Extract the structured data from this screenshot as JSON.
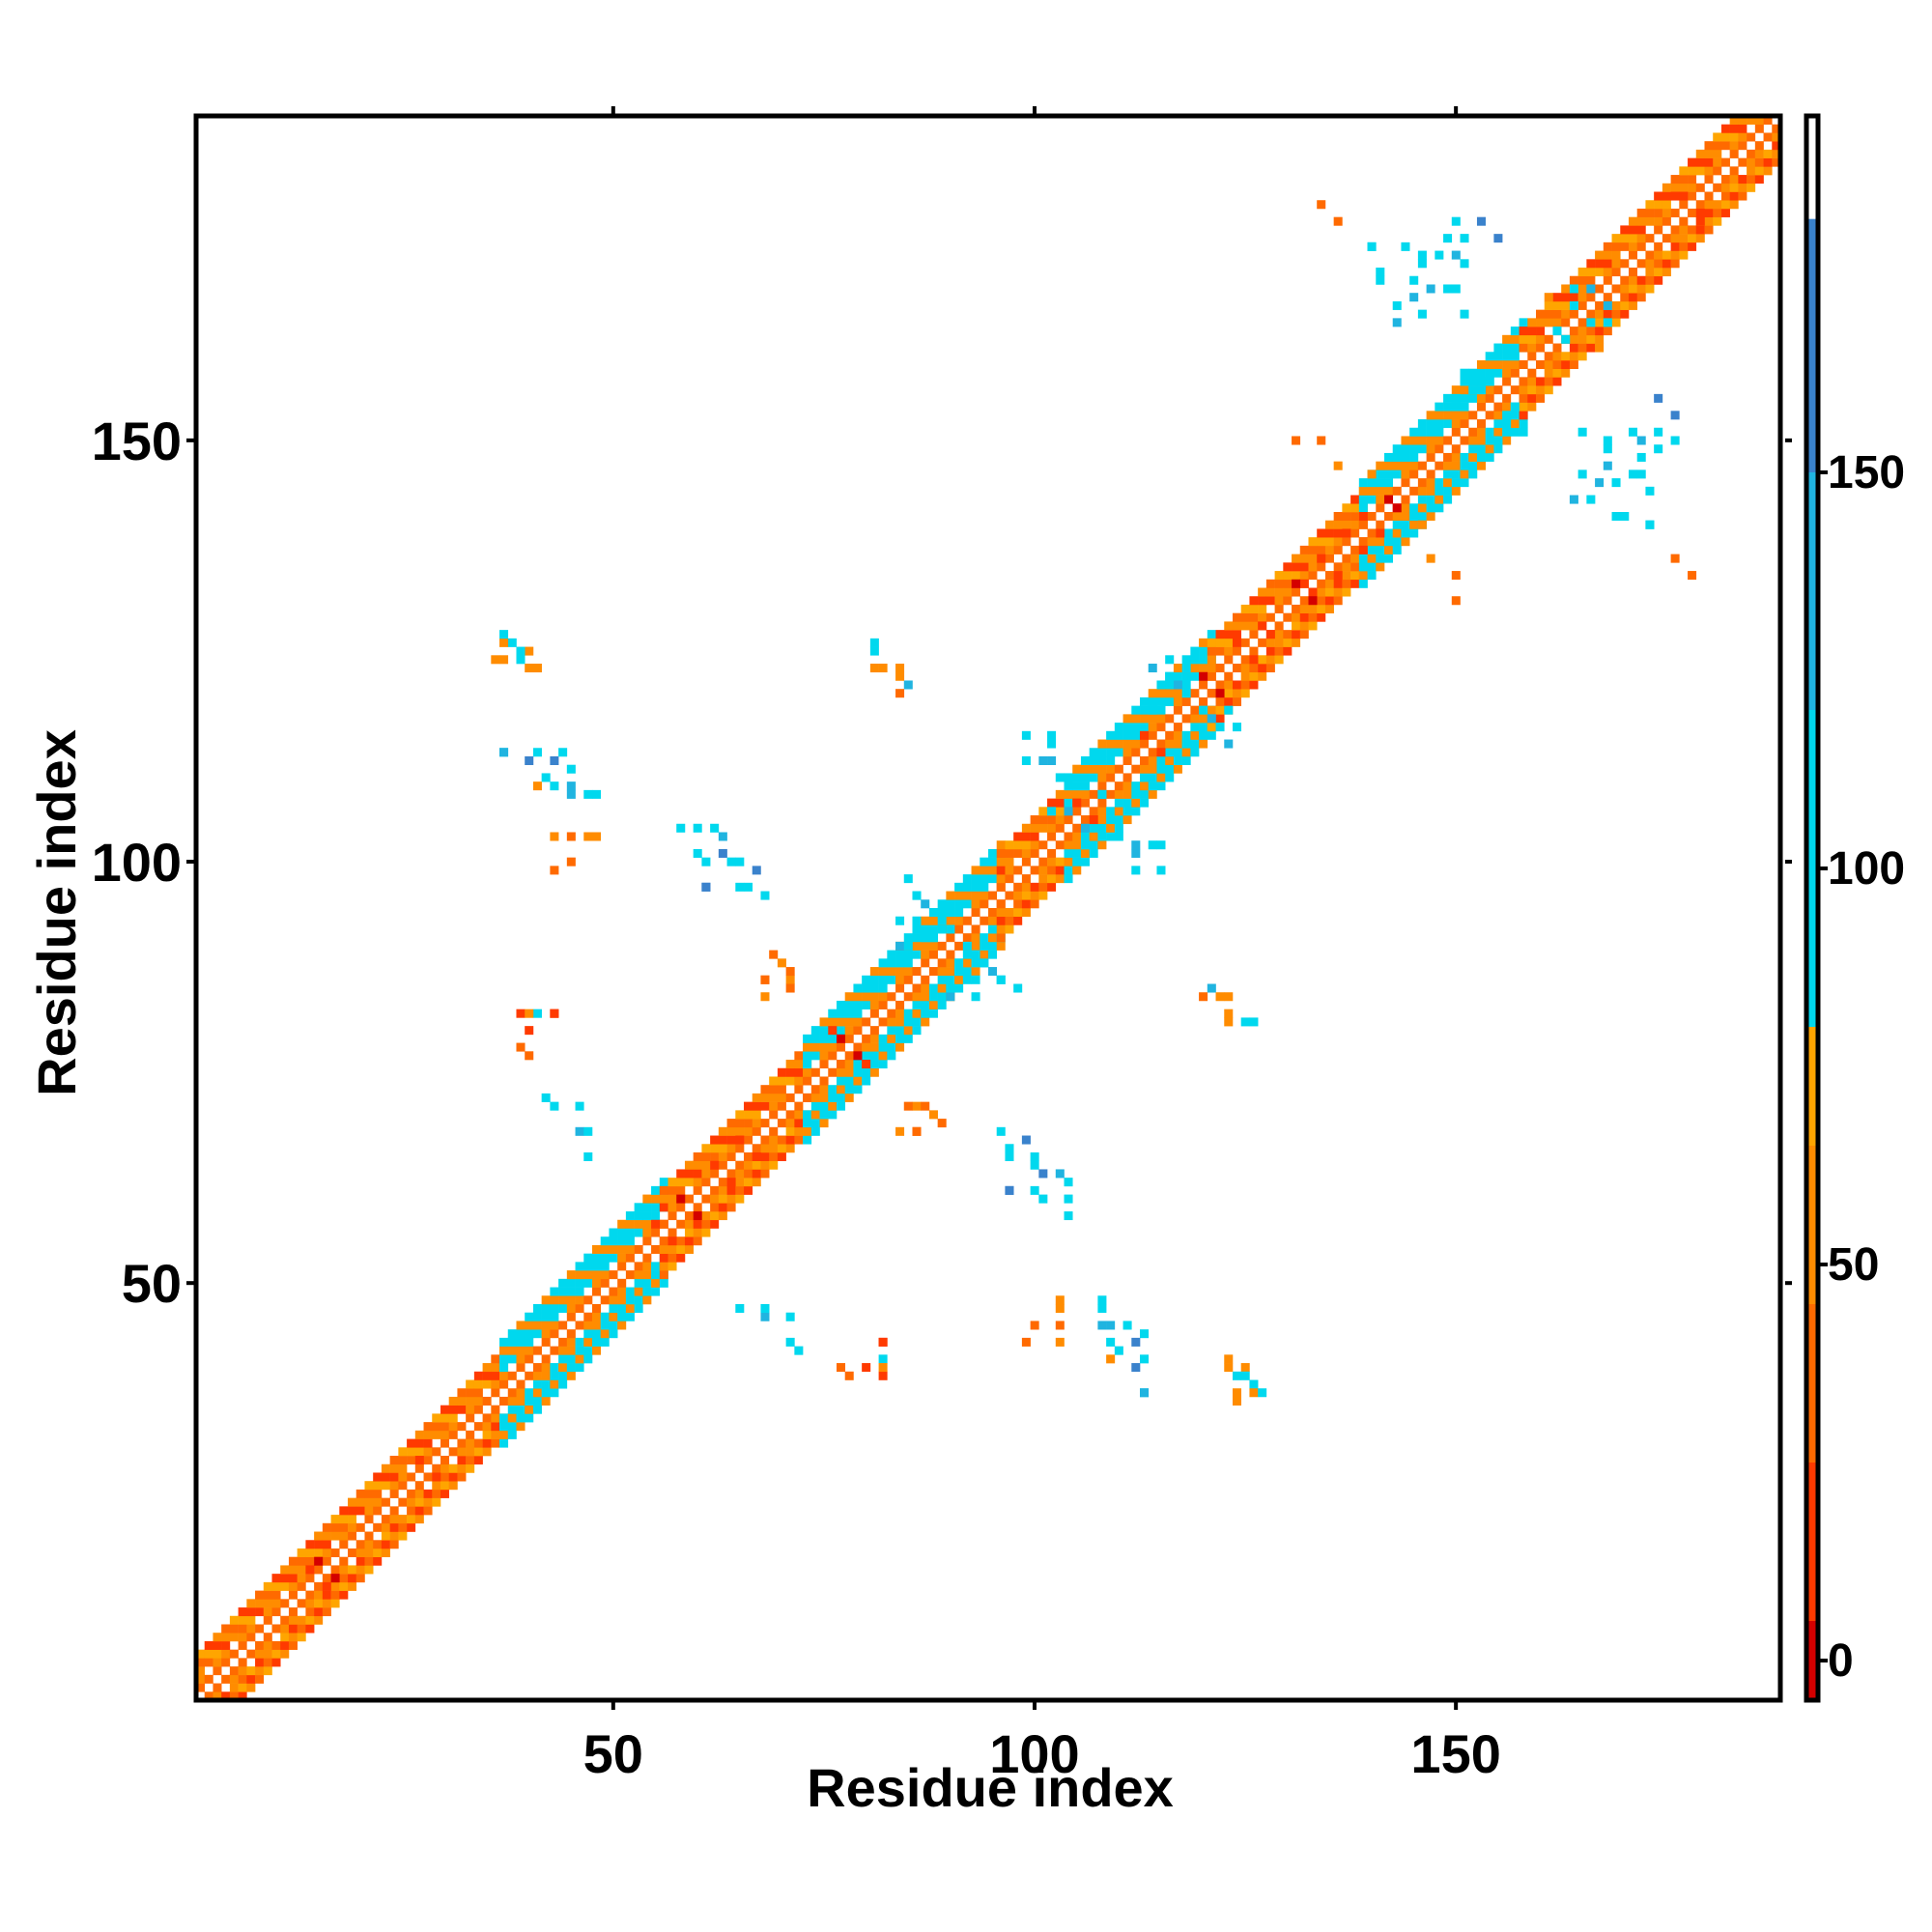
{
  "chart_data": {
    "type": "heatmap",
    "title": "",
    "xlabel": "Residue index",
    "ylabel": "Residue index",
    "xlim": [
      1,
      188
    ],
    "ylim": [
      1,
      188
    ],
    "x_ticks": [
      50,
      100,
      150
    ],
    "y_ticks": [
      50,
      100,
      150
    ],
    "grid": false,
    "colorbar": {
      "placement": "right",
      "range": [
        -5,
        195
      ],
      "ticks": [
        0,
        50,
        100,
        150
      ],
      "bands": [
        {
          "from": -5,
          "to": 5,
          "color": "#d40000"
        },
        {
          "from": 5,
          "to": 25,
          "color": "#ff3a00"
        },
        {
          "from": 25,
          "to": 45,
          "color": "#ff6a00"
        },
        {
          "from": 45,
          "to": 65,
          "color": "#ff8c00"
        },
        {
          "from": 65,
          "to": 80,
          "color": "#ffa500"
        },
        {
          "from": 80,
          "to": 120,
          "color": "#00d8ee"
        },
        {
          "from": 120,
          "to": 150,
          "color": "#20b4e0"
        },
        {
          "from": 150,
          "to": 182,
          "color": "#3a82cc"
        },
        {
          "from": 182,
          "to": 195,
          "color": "#ffffff"
        }
      ]
    },
    "diagonal_segments": [
      {
        "from": 1,
        "to": 37,
        "half_width": 5,
        "color": "#ff8c00"
      },
      {
        "from": 37,
        "to": 56,
        "half_width": 6,
        "color": "#00d8ee"
      },
      {
        "from": 56,
        "to": 73,
        "half_width": 5,
        "color": "#ff8c00"
      },
      {
        "from": 73,
        "to": 96,
        "half_width": 6,
        "color": "#00d8ee"
      },
      {
        "from": 96,
        "to": 104,
        "half_width": 5,
        "color": "#ff8c00"
      },
      {
        "from": 104,
        "to": 121,
        "half_width": 6,
        "color": "#00d8ee"
      },
      {
        "from": 121,
        "to": 139,
        "half_width": 5,
        "color": "#ff8c00"
      },
      {
        "from": 139,
        "to": 158,
        "half_width": 6,
        "color": "#00d8ee"
      },
      {
        "from": 158,
        "to": 188,
        "half_width": 5,
        "color": "#ff8c00"
      }
    ],
    "contact_clusters": [
      {
        "x": 37,
        "y": 124,
        "color": "#ff8c00"
      },
      {
        "x": 38,
        "y": 126,
        "color": "#00d8ee"
      },
      {
        "x": 39,
        "y": 124,
        "color": "#00d8ee"
      },
      {
        "x": 40,
        "y": 125,
        "color": "#ff8c00"
      },
      {
        "x": 41,
        "y": 123,
        "color": "#ff8c00"
      },
      {
        "x": 37,
        "y": 113,
        "color": "#00d8ee"
      },
      {
        "x": 40,
        "y": 112,
        "color": "#3a82cc"
      },
      {
        "x": 43,
        "y": 112,
        "color": "#3a82cc"
      },
      {
        "x": 41,
        "y": 109,
        "color": "#ff8c00"
      },
      {
        "x": 43,
        "y": 109,
        "color": "#00d8ee"
      },
      {
        "x": 45,
        "y": 108,
        "color": "#20b4e0"
      },
      {
        "x": 47,
        "y": 108,
        "color": "#00d8ee"
      },
      {
        "x": 43,
        "y": 103,
        "color": "#ff8c00"
      },
      {
        "x": 47,
        "y": 103,
        "color": "#ff8c00"
      },
      {
        "x": 43,
        "y": 99,
        "color": "#ff6a00"
      },
      {
        "x": 39,
        "y": 82,
        "color": "#ff3a00"
      },
      {
        "x": 41,
        "y": 82,
        "color": "#00d8ee"
      },
      {
        "x": 43,
        "y": 82,
        "color": "#ff3a00"
      },
      {
        "x": 39,
        "y": 78,
        "color": "#ff6a00"
      },
      {
        "x": 42,
        "y": 72,
        "color": "#00d8ee"
      },
      {
        "x": 46,
        "y": 71,
        "color": "#00d8ee"
      },
      {
        "x": 46,
        "y": 68,
        "color": "#20b4e0"
      },
      {
        "x": 58,
        "y": 104,
        "color": "#00d8ee"
      },
      {
        "x": 62,
        "y": 104,
        "color": "#00d8ee"
      },
      {
        "x": 60,
        "y": 101,
        "color": "#00d8ee"
      },
      {
        "x": 63,
        "y": 101,
        "color": "#3a82cc"
      },
      {
        "x": 65,
        "y": 100,
        "color": "#00d8ee"
      },
      {
        "x": 61,
        "y": 97,
        "color": "#3a82cc"
      },
      {
        "x": 66,
        "y": 97,
        "color": "#00d8ee"
      },
      {
        "x": 69,
        "y": 89,
        "color": "#ff6a00"
      },
      {
        "x": 70,
        "y": 88,
        "color": "#ff8c00"
      },
      {
        "x": 68,
        "y": 86,
        "color": "#ff6a00"
      },
      {
        "x": 71,
        "y": 86,
        "color": "#ff8c00"
      },
      {
        "x": 65,
        "y": 47,
        "color": "#00d8ee"
      },
      {
        "x": 68,
        "y": 47,
        "color": "#00d8ee"
      },
      {
        "x": 71,
        "y": 43,
        "color": "#00d8ee"
      },
      {
        "x": 77,
        "y": 40,
        "color": "#ff6a00"
      },
      {
        "x": 80,
        "y": 40,
        "color": "#ff3a00"
      },
      {
        "x": 82,
        "y": 43,
        "color": "#ff3a00"
      },
      {
        "x": 82,
        "y": 40,
        "color": "#ff8c00"
      },
      {
        "x": 81,
        "y": 126,
        "color": "#00d8ee"
      },
      {
        "x": 82,
        "y": 123,
        "color": "#ff8c00"
      },
      {
        "x": 84,
        "y": 123,
        "color": "#ff8c00"
      },
      {
        "x": 85,
        "y": 121,
        "color": "#20b4e0"
      },
      {
        "x": 85,
        "y": 71,
        "color": "#ff6a00"
      },
      {
        "x": 87,
        "y": 71,
        "color": "#ff6a00"
      },
      {
        "x": 84,
        "y": 68,
        "color": "#ff8c00"
      },
      {
        "x": 86,
        "y": 68,
        "color": "#ff6a00"
      },
      {
        "x": 96,
        "y": 68,
        "color": "#00d8ee"
      },
      {
        "x": 99,
        "y": 67,
        "color": "#3a82cc"
      },
      {
        "x": 97,
        "y": 65,
        "color": "#00d8ee"
      },
      {
        "x": 100,
        "y": 64,
        "color": "#00d8ee"
      },
      {
        "x": 103,
        "y": 63,
        "color": "#20b4e0"
      },
      {
        "x": 97,
        "y": 61,
        "color": "#3a82cc"
      },
      {
        "x": 100,
        "y": 61,
        "color": "#00d8ee"
      },
      {
        "x": 104,
        "y": 60,
        "color": "#00d8ee"
      },
      {
        "x": 99,
        "y": 115,
        "color": "#00d8ee"
      },
      {
        "x": 101,
        "y": 112,
        "color": "#20b4e0"
      },
      {
        "x": 102,
        "y": 115,
        "color": "#00d8ee"
      },
      {
        "x": 110,
        "y": 103,
        "color": "#00d8ee"
      },
      {
        "x": 112,
        "y": 102,
        "color": "#20b4e0"
      },
      {
        "x": 114,
        "y": 102,
        "color": "#00d8ee"
      },
      {
        "x": 112,
        "y": 99,
        "color": "#00d8ee"
      },
      {
        "x": 100,
        "y": 45,
        "color": "#ff6a00"
      },
      {
        "x": 103,
        "y": 48,
        "color": "#ff8c00"
      },
      {
        "x": 103,
        "y": 45,
        "color": "#ff6a00"
      },
      {
        "x": 108,
        "y": 48,
        "color": "#00d8ee"
      },
      {
        "x": 109,
        "y": 45,
        "color": "#20b4e0"
      },
      {
        "x": 111,
        "y": 45,
        "color": "#00d8ee"
      },
      {
        "x": 113,
        "y": 44,
        "color": "#00d8ee"
      },
      {
        "x": 110,
        "y": 42,
        "color": "#00d8ee"
      },
      {
        "x": 113,
        "y": 41,
        "color": "#00d8ee"
      },
      {
        "x": 113,
        "y": 37,
        "color": "#20b4e0"
      },
      {
        "x": 123,
        "y": 40,
        "color": "#ff8c00"
      },
      {
        "x": 125,
        "y": 39,
        "color": "#00d8ee"
      },
      {
        "x": 126,
        "y": 37,
        "color": "#ff8c00"
      },
      {
        "x": 124,
        "y": 36,
        "color": "#ff8c00"
      },
      {
        "x": 127,
        "y": 37,
        "color": "#00d8ee"
      },
      {
        "x": 120,
        "y": 84,
        "color": "#ff6a00"
      },
      {
        "x": 122,
        "y": 84,
        "color": "#ff8c00"
      },
      {
        "x": 123,
        "y": 81,
        "color": "#ff8c00"
      },
      {
        "x": 125,
        "y": 81,
        "color": "#00d8ee"
      },
      {
        "x": 134,
        "y": 178,
        "color": "#ff6a00"
      },
      {
        "x": 140,
        "y": 173,
        "color": "#00d8ee"
      },
      {
        "x": 144,
        "y": 173,
        "color": "#00d8ee"
      },
      {
        "x": 146,
        "y": 172,
        "color": "#00d8ee"
      },
      {
        "x": 148,
        "y": 172,
        "color": "#00d8ee"
      },
      {
        "x": 150,
        "y": 176,
        "color": "#00d8ee"
      },
      {
        "x": 150,
        "y": 172,
        "color": "#20b4e0"
      },
      {
        "x": 153,
        "y": 176,
        "color": "#3a82cc"
      },
      {
        "x": 141,
        "y": 169,
        "color": "#00d8ee"
      },
      {
        "x": 145,
        "y": 169,
        "color": "#00d8ee"
      },
      {
        "x": 147,
        "y": 168,
        "color": "#20b4e0"
      },
      {
        "x": 150,
        "y": 168,
        "color": "#00d8ee"
      },
      {
        "x": 143,
        "y": 164,
        "color": "#20b4e0"
      },
      {
        "x": 146,
        "y": 165,
        "color": "#00d8ee"
      },
      {
        "x": 131,
        "y": 150,
        "color": "#ff6a00"
      },
      {
        "x": 136,
        "y": 147,
        "color": "#ff8c00"
      },
      {
        "x": 165,
        "y": 151,
        "color": "#00d8ee"
      },
      {
        "x": 168,
        "y": 149,
        "color": "#00d8ee"
      },
      {
        "x": 171,
        "y": 151,
        "color": "#00d8ee"
      },
      {
        "x": 174,
        "y": 151,
        "color": "#00d8ee"
      },
      {
        "x": 167,
        "y": 145,
        "color": "#20b4e0"
      },
      {
        "x": 171,
        "y": 146,
        "color": "#00d8ee"
      },
      {
        "x": 174,
        "y": 149,
        "color": "#00d8ee"
      },
      {
        "x": 174,
        "y": 155,
        "color": "#3a82cc"
      },
      {
        "x": 170,
        "y": 141,
        "color": "#00d8ee"
      },
      {
        "x": 173,
        "y": 140,
        "color": "#00d8ee"
      },
      {
        "x": 166,
        "y": 143,
        "color": "#00d8ee"
      },
      {
        "x": 176,
        "y": 136,
        "color": "#ff6a00"
      },
      {
        "x": 150,
        "y": 134,
        "color": "#ff6a00"
      },
      {
        "x": 146,
        "y": 140,
        "color": "#ff8c00"
      },
      {
        "x": 84,
        "y": 93,
        "color": "#00d8ee"
      },
      {
        "x": 86,
        "y": 96,
        "color": "#00d8ee"
      },
      {
        "x": 87,
        "y": 95,
        "color": "#20b4e0"
      },
      {
        "x": 89,
        "y": 93,
        "color": "#00d8ee"
      },
      {
        "x": 91,
        "y": 87,
        "color": "#00d8ee"
      },
      {
        "x": 93,
        "y": 86,
        "color": "#00d8ee"
      },
      {
        "x": 94,
        "y": 88,
        "color": "#00d8ee"
      },
      {
        "x": 96,
        "y": 86,
        "color": "#00d8ee"
      },
      {
        "x": 98,
        "y": 85,
        "color": "#00d8ee"
      },
      {
        "x": 90,
        "y": 84,
        "color": "#20b4e0"
      },
      {
        "x": 88,
        "y": 91,
        "color": "#00d8ee"
      },
      {
        "x": 85,
        "y": 90,
        "color": "#00d8ee"
      },
      {
        "x": 92,
        "y": 90,
        "color": "#00d8ee"
      },
      {
        "x": 116,
        "y": 124,
        "color": "#00d8ee"
      },
      {
        "x": 118,
        "y": 123,
        "color": "#00d8ee"
      },
      {
        "x": 117,
        "y": 121,
        "color": "#20b4e0"
      },
      {
        "x": 120,
        "y": 118,
        "color": "#00d8ee"
      },
      {
        "x": 122,
        "y": 116,
        "color": "#00d8ee"
      },
      {
        "x": 123,
        "y": 114,
        "color": "#20b4e0"
      },
      {
        "x": 114,
        "y": 118,
        "color": "#00d8ee"
      },
      {
        "x": 108,
        "y": 108,
        "color": "#00d8ee"
      },
      {
        "x": 104,
        "y": 106,
        "color": "#20b4e0"
      },
      {
        "x": 106,
        "y": 102,
        "color": "#00d8ee"
      },
      {
        "x": 152,
        "y": 156,
        "color": "#00d8ee"
      },
      {
        "x": 154,
        "y": 157,
        "color": "#00d8ee"
      },
      {
        "x": 156,
        "y": 153,
        "color": "#00d8ee"
      },
      {
        "x": 158,
        "y": 151,
        "color": "#00d8ee"
      },
      {
        "x": 155,
        "y": 150,
        "color": "#00d8ee"
      },
      {
        "x": 164,
        "y": 166,
        "color": "#00d8ee"
      },
      {
        "x": 166,
        "y": 168,
        "color": "#20b4e0"
      },
      {
        "x": 168,
        "y": 164,
        "color": "#00d8ee"
      },
      {
        "x": 161,
        "y": 167,
        "color": "#ff8c00"
      },
      {
        "x": 163,
        "y": 162,
        "color": "#00d8ee"
      },
      {
        "x": 133,
        "y": 132,
        "color": "#ff3a00"
      },
      {
        "x": 136,
        "y": 134,
        "color": "#ff3a00"
      },
      {
        "x": 131,
        "y": 133,
        "color": "#d40000"
      },
      {
        "x": 128,
        "y": 127,
        "color": "#ff3a00"
      },
      {
        "x": 141,
        "y": 139,
        "color": "#ff3a00"
      },
      {
        "x": 143,
        "y": 142,
        "color": "#d40000"
      },
      {
        "x": 176,
        "y": 179,
        "color": "#ff3a00"
      },
      {
        "x": 179,
        "y": 177,
        "color": "#ff3a00"
      },
      {
        "x": 14,
        "y": 16,
        "color": "#ff3a00"
      },
      {
        "x": 17,
        "y": 15,
        "color": "#d40000"
      },
      {
        "x": 27,
        "y": 29,
        "color": "#ff3a00"
      },
      {
        "x": 55,
        "y": 57,
        "color": "#ff3a00"
      },
      {
        "x": 58,
        "y": 60,
        "color": "#d40000"
      },
      {
        "x": 62,
        "y": 64,
        "color": "#ff3a00"
      },
      {
        "x": 65,
        "y": 67,
        "color": "#ff3a00"
      },
      {
        "x": 80,
        "y": 76,
        "color": "#ff3a00"
      },
      {
        "x": 77,
        "y": 79,
        "color": "#d40000"
      },
      {
        "x": 107,
        "y": 105,
        "color": "#ff3a00"
      },
      {
        "x": 115,
        "y": 113,
        "color": "#ff3a00"
      },
      {
        "x": 120,
        "y": 122,
        "color": "#d40000"
      },
      {
        "x": 124,
        "y": 126,
        "color": "#ff3a00"
      },
      {
        "x": 137,
        "y": 139,
        "color": "#ff3a00"
      }
    ]
  }
}
